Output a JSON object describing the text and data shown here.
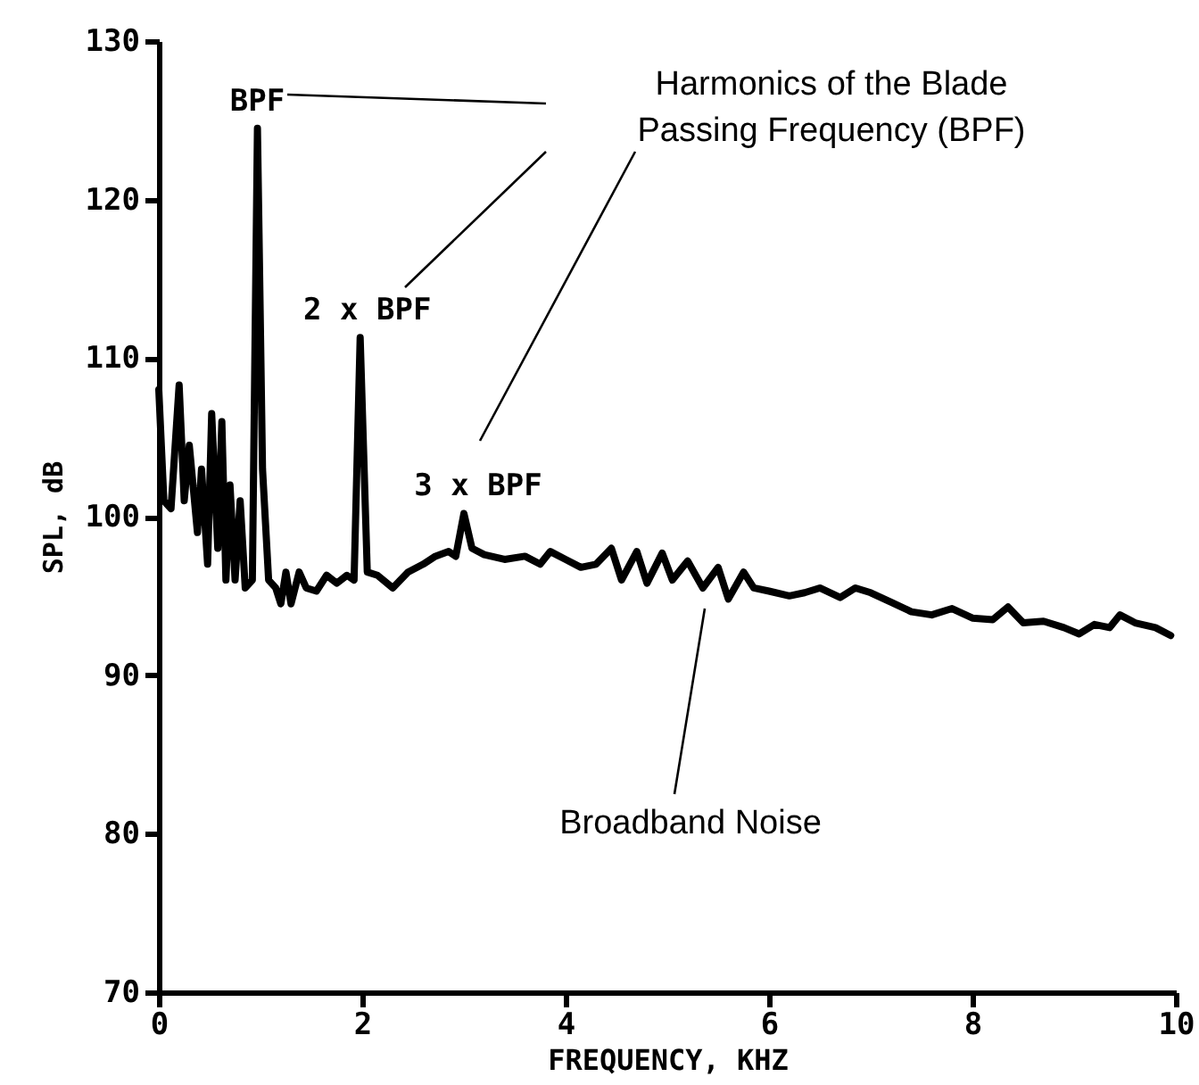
{
  "chart_data": {
    "type": "line",
    "xlabel": "FREQUENCY, KHZ",
    "ylabel": "SPL, dB",
    "xlim": [
      0,
      10
    ],
    "xticks": [
      {
        "value": 0,
        "label": "0"
      },
      {
        "value": 2,
        "label": "2"
      },
      {
        "value": 4,
        "label": "4"
      },
      {
        "value": 6,
        "label": "6"
      },
      {
        "value": 8,
        "label": "8"
      },
      {
        "value": 10,
        "label": "10"
      }
    ],
    "ylim": [
      70,
      130
    ],
    "yticks": [
      70,
      80,
      90,
      100,
      110,
      120,
      130
    ],
    "grid": false,
    "line_style": "solid",
    "marker": "none",
    "x": [
      0,
      0.05,
      0.12,
      0.2,
      0.25,
      0.3,
      0.38,
      0.42,
      0.48,
      0.52,
      0.58,
      0.62,
      0.66,
      0.7,
      0.75,
      0.8,
      0.85,
      0.92,
      0.97,
      1.02,
      1.08,
      1.15,
      1.2,
      1.25,
      1.3,
      1.38,
      1.45,
      1.55,
      1.65,
      1.75,
      1.85,
      1.92,
      1.98,
      2.05,
      2.15,
      2.3,
      2.45,
      2.6,
      2.72,
      2.85,
      2.92,
      3.0,
      3.08,
      3.2,
      3.4,
      3.6,
      3.75,
      3.85,
      4.0,
      4.15,
      4.3,
      4.45,
      4.55,
      4.7,
      4.8,
      4.95,
      5.05,
      5.2,
      5.35,
      5.5,
      5.6,
      5.75,
      5.85,
      6.0,
      6.2,
      6.35,
      6.5,
      6.7,
      6.85,
      7.0,
      7.2,
      7.4,
      7.6,
      7.8,
      8.0,
      8.2,
      8.35,
      8.5,
      8.7,
      8.9,
      9.05,
      9.2,
      9.35,
      9.45,
      9.6,
      9.8,
      9.95
    ],
    "series": [
      {
        "color": "#000000",
        "values": [
          108,
          101,
          100.5,
          108.3,
          101,
          104.5,
          99,
          103,
          97,
          106.5,
          98,
          106,
          96,
          102,
          96,
          101,
          95.5,
          96,
          124.5,
          103,
          96,
          95.5,
          94.5,
          96.5,
          94.5,
          96.5,
          95.5,
          95.3,
          96.3,
          95.8,
          96.3,
          96,
          111.3,
          96.5,
          96.3,
          95.5,
          96.5,
          97,
          97.5,
          97.8,
          97.5,
          100.2,
          98,
          97.6,
          97.3,
          97.5,
          97,
          97.8,
          97.3,
          96.8,
          97,
          98,
          96,
          97.8,
          95.8,
          97.7,
          96,
          97.2,
          95.5,
          96.8,
          94.8,
          96.5,
          95.5,
          95.3,
          95,
          95.2,
          95.5,
          94.9,
          95.5,
          95.2,
          94.6,
          94,
          93.8,
          94.2,
          93.6,
          93.5,
          94.3,
          93.3,
          93.4,
          93,
          92.6,
          93.2,
          93,
          93.8,
          93.3,
          93,
          92.5
        ]
      }
    ],
    "annotations": [
      {
        "text": "BPF",
        "x": 0.97,
        "y": 124.5
      },
      {
        "text": "2 x BPF",
        "x": 1.98,
        "y": 111.3
      },
      {
        "text": "3 x BPF",
        "x": 3.0,
        "y": 100.2
      },
      "Harmonics of the Blade Passing Frequency (BPF)",
      "Broadband Noise"
    ]
  }
}
